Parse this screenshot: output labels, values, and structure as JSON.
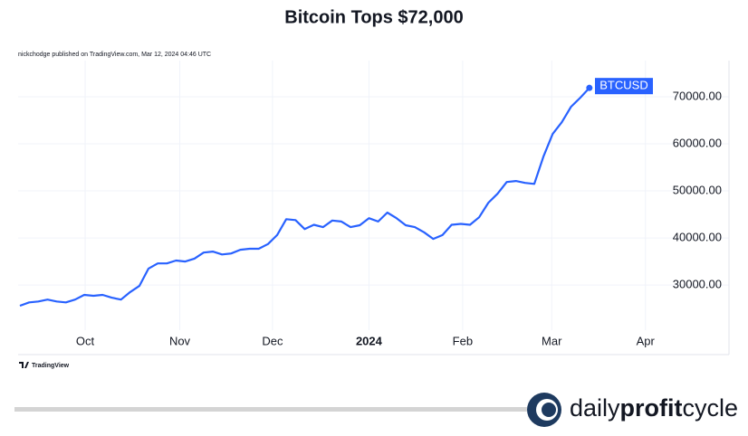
{
  "chart_data": {
    "type": "line",
    "title": "Bitcoin Tops $72,000",
    "subtitle": "nickchodge published on TradingView.com, Mar 12, 2024 04:46 UTC",
    "series": [
      {
        "name": "BTCUSD",
        "color": "#2962ff",
        "values": [
          25600,
          26300,
          26500,
          26900,
          26500,
          26300,
          26900,
          27900,
          27700,
          27900,
          27300,
          26900,
          28500,
          29800,
          33500,
          34600,
          34600,
          35200,
          35000,
          35600,
          36900,
          37100,
          36500,
          36700,
          37500,
          37700,
          37700,
          38700,
          40600,
          44000,
          43800,
          41900,
          42800,
          42300,
          43700,
          43500,
          42300,
          42700,
          44200,
          43500,
          45400,
          44200,
          42700,
          42300,
          41200,
          39800,
          40600,
          42800,
          43000,
          42800,
          44400,
          47500,
          49400,
          51900,
          52100,
          51700,
          51500,
          57300,
          62100,
          64600,
          67900,
          69800,
          71900
        ]
      }
    ],
    "xlim": [
      -0.2,
      77.2
    ],
    "xticks": [
      {
        "value": 7.1,
        "label": "Oct"
      },
      {
        "value": 17.4,
        "label": "Nov"
      },
      {
        "value": 27.5,
        "label": "Dec"
      },
      {
        "value": 38.0,
        "label": "2024"
      },
      {
        "value": 48.2,
        "label": "Feb"
      },
      {
        "value": 57.9,
        "label": "Mar"
      },
      {
        "value": 68.1,
        "label": "Apr"
      }
    ],
    "ylim": [
      20400,
      77700
    ],
    "yticks": [
      {
        "value": 30000,
        "label": "30000.00"
      },
      {
        "value": 40000,
        "label": "40000.00"
      },
      {
        "value": 50000,
        "label": "50000.00"
      },
      {
        "value": 60000,
        "label": "60000.00"
      },
      {
        "value": 70000,
        "label": "70000.00"
      }
    ],
    "grid": true
  },
  "footer": {
    "source": "TradingView",
    "brand": [
      "daily",
      "profit",
      "cycle"
    ]
  }
}
